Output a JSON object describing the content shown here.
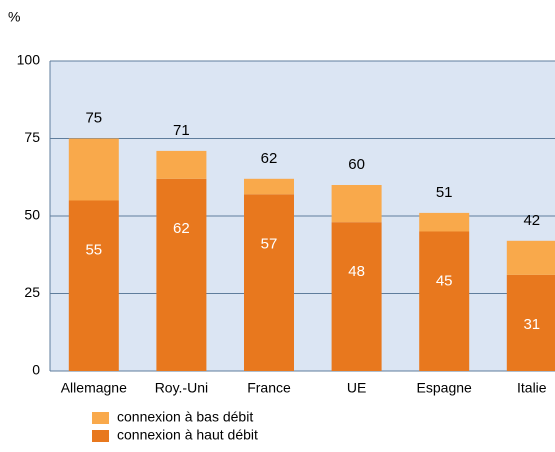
{
  "chart_data": {
    "type": "stacked_bar",
    "y_label": "%",
    "categories": [
      "Allemagne",
      "Roy.-Uni",
      "France",
      "UE",
      "Espagne",
      "Italie"
    ],
    "series": [
      {
        "name": "connexion à haut débit",
        "color": "#e8781e",
        "values": [
          55,
          62,
          57,
          48,
          45,
          31
        ]
      },
      {
        "name": "connexion à bas débit",
        "color": "#f9a94b",
        "values": [
          20,
          9,
          5,
          12,
          6,
          11
        ]
      }
    ],
    "totals": [
      75,
      71,
      62,
      60,
      51,
      42
    ],
    "ylim": [
      0,
      100
    ],
    "yticks": [
      0,
      25,
      50,
      75,
      100
    ],
    "grid": true
  }
}
